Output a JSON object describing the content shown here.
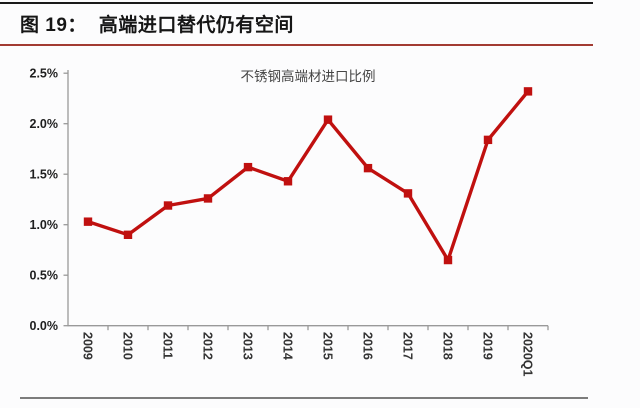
{
  "page": {
    "title_prefix": "图 19：",
    "title": "高端进口替代仍有空间"
  },
  "chart_data": {
    "type": "line",
    "title": "不锈钢高端材进口比例",
    "categories": [
      "2009",
      "2010",
      "2011",
      "2012",
      "2013",
      "2014",
      "2015",
      "2016",
      "2017",
      "2018",
      "2019",
      "2020Q1"
    ],
    "values": [
      1.03,
      0.9,
      1.19,
      1.26,
      1.57,
      1.43,
      2.04,
      1.56,
      1.31,
      0.65,
      1.84,
      2.32
    ],
    "unit": "%",
    "ylim": [
      0,
      2.5
    ],
    "ytick_step": 0.5,
    "ytick_labels": [
      "0.0%",
      "0.5%",
      "1.0%",
      "1.5%",
      "2.0%",
      "2.5%"
    ],
    "grid": false,
    "legend": "none",
    "marker": "square",
    "series_color": "#c0100f"
  },
  "colors": {
    "top_rule": "#1a1a1a",
    "title_underline": "#a23b32",
    "axis": "#999999",
    "ytick_text": "#1f1f1f",
    "xtick_text": "#333333",
    "bottom_rule": "#7c7c7c"
  }
}
